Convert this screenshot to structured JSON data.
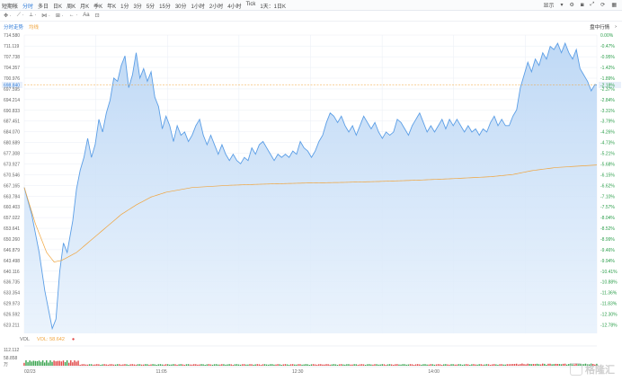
{
  "toolbar": {
    "tabs": [
      "短期帐",
      "分时",
      "多日",
      "日K",
      "周K",
      "月K",
      "季K",
      "年K",
      "1分",
      "3分",
      "5分",
      "15分",
      "30分",
      "1小时",
      "2小时",
      "4小时",
      "Tick",
      "1天：1日K"
    ],
    "active_tab": 1,
    "right_label": "显示"
  },
  "drawbar": {
    "tools": [
      "✥ ·",
      "⟋ ·",
      "⟂ ·",
      "⋈ ·",
      "⊞ ·",
      "← ·",
      "Aa",
      "⊡"
    ]
  },
  "subhead": {
    "left_labels": [
      "分时走势",
      "均线"
    ],
    "right_label": "盘中行情"
  },
  "colors": {
    "price_line": "#5b9ee6",
    "area_top": "#bcd7f5",
    "avg_line": "#f0a43c",
    "vol_up": "#e04646",
    "vol_down": "#38a34e",
    "grid": "#e9eef5",
    "current_price": "#f0a43c",
    "right_axis": "#2b9e4a",
    "tab_active": "#2f7bd8",
    "tab_text": "#444444",
    "avg_label": "#f0a43c"
  },
  "vol": {
    "name": "VOL",
    "value_label": "VOL: 58.642"
  },
  "chart_data": {
    "type": "line",
    "x_tick_labels": [
      "02/23",
      "11:05",
      "12:30",
      "14:00"
    ],
    "x_tick_index": [
      0,
      73,
      146,
      219
    ],
    "y_left_labels": [
      "714.580",
      "711.119",
      "707.738",
      "704.357",
      "700.976",
      "697.595",
      "694.214",
      "690.833",
      "687.451",
      "684.070",
      "680.689",
      "677.308",
      "673.927",
      "670.546",
      "667.165",
      "663.784",
      "660.403",
      "657.022",
      "653.641",
      "650.260",
      "646.879",
      "643.498",
      "640.116",
      "636.735",
      "633.354",
      "629.973",
      "626.592",
      "623.211"
    ],
    "y_right_labels": [
      "0.00%",
      "-0.47%",
      "-0.95%",
      "-1.42%",
      "-1.89%",
      "-2.37%",
      "-2.84%",
      "-3.31%",
      "-3.79%",
      "-4.26%",
      "-4.73%",
      "-5.21%",
      "-5.68%",
      "-6.15%",
      "-6.62%",
      "-7.10%",
      "-7.57%",
      "-8.04%",
      "-8.52%",
      "-8.99%",
      "-9.46%",
      "-9.94%",
      "-10.41%",
      "-10.88%",
      "-11.36%",
      "-11.83%",
      "-12.30%",
      "-12.78%"
    ],
    "ylim": [
      620.5,
      714.58
    ],
    "current_price": "698.840",
    "current_pct": "-2.18%",
    "series_price_anchors": [
      [
        0,
        666.5
      ],
      [
        4,
        658
      ],
      [
        8,
        646
      ],
      [
        11,
        634
      ],
      [
        13,
        628
      ],
      [
        15,
        622
      ],
      [
        17,
        625
      ],
      [
        19,
        640
      ],
      [
        21,
        649
      ],
      [
        23,
        646
      ],
      [
        26,
        656
      ],
      [
        28,
        666
      ],
      [
        30,
        672
      ],
      [
        32,
        676
      ],
      [
        34,
        682
      ],
      [
        36,
        676
      ],
      [
        38,
        680
      ],
      [
        40,
        688
      ],
      [
        42,
        684
      ],
      [
        44,
        690
      ],
      [
        46,
        694
      ],
      [
        48,
        701
      ],
      [
        50,
        700
      ],
      [
        52,
        705
      ],
      [
        54,
        708
      ],
      [
        56,
        698
      ],
      [
        58,
        702
      ],
      [
        60,
        709
      ],
      [
        62,
        701
      ],
      [
        64,
        704
      ],
      [
        66,
        700
      ],
      [
        68,
        703
      ],
      [
        70,
        695
      ],
      [
        72,
        692
      ],
      [
        74,
        685
      ],
      [
        76,
        689
      ],
      [
        78,
        686
      ],
      [
        80,
        681
      ],
      [
        82,
        686
      ],
      [
        84,
        683
      ],
      [
        86,
        684
      ],
      [
        88,
        681
      ],
      [
        90,
        683
      ],
      [
        92,
        686
      ],
      [
        94,
        688
      ],
      [
        96,
        683
      ],
      [
        98,
        680
      ],
      [
        100,
        683
      ],
      [
        102,
        680
      ],
      [
        104,
        677
      ],
      [
        106,
        680
      ],
      [
        108,
        677
      ],
      [
        110,
        675
      ],
      [
        112,
        677
      ],
      [
        114,
        675
      ],
      [
        116,
        674
      ],
      [
        118,
        676
      ],
      [
        120,
        675
      ],
      [
        122,
        679
      ],
      [
        124,
        677
      ],
      [
        126,
        680
      ],
      [
        128,
        681
      ],
      [
        130,
        679
      ],
      [
        132,
        677
      ],
      [
        134,
        675
      ],
      [
        136,
        677
      ],
      [
        138,
        676
      ],
      [
        140,
        677
      ],
      [
        142,
        676
      ],
      [
        144,
        678
      ],
      [
        146,
        677
      ],
      [
        148,
        681
      ],
      [
        150,
        679
      ],
      [
        152,
        678
      ],
      [
        154,
        676
      ],
      [
        156,
        678
      ],
      [
        158,
        681
      ],
      [
        160,
        683
      ],
      [
        162,
        687
      ],
      [
        164,
        690
      ],
      [
        166,
        689
      ],
      [
        168,
        687
      ],
      [
        170,
        689
      ],
      [
        172,
        686
      ],
      [
        174,
        684
      ],
      [
        176,
        686
      ],
      [
        178,
        683
      ],
      [
        180,
        686
      ],
      [
        182,
        689
      ],
      [
        184,
        687
      ],
      [
        186,
        685
      ],
      [
        188,
        687
      ],
      [
        190,
        684
      ],
      [
        192,
        682
      ],
      [
        194,
        684
      ],
      [
        196,
        683
      ],
      [
        198,
        684
      ],
      [
        200,
        688
      ],
      [
        202,
        687
      ],
      [
        204,
        685
      ],
      [
        206,
        683
      ],
      [
        208,
        686
      ],
      [
        210,
        688
      ],
      [
        212,
        690
      ],
      [
        214,
        687
      ],
      [
        216,
        684
      ],
      [
        218,
        686
      ],
      [
        220,
        684
      ],
      [
        222,
        686
      ],
      [
        224,
        688
      ],
      [
        226,
        685
      ],
      [
        228,
        688
      ],
      [
        230,
        686
      ],
      [
        232,
        688
      ],
      [
        234,
        686
      ],
      [
        236,
        684
      ],
      [
        238,
        686
      ],
      [
        240,
        684
      ],
      [
        242,
        685
      ],
      [
        244,
        683
      ],
      [
        246,
        685
      ],
      [
        248,
        684
      ],
      [
        250,
        687
      ],
      [
        252,
        689
      ],
      [
        254,
        686
      ],
      [
        256,
        688
      ],
      [
        258,
        686
      ],
      [
        260,
        686
      ],
      [
        262,
        689
      ],
      [
        264,
        691
      ],
      [
        266,
        698
      ],
      [
        268,
        702
      ],
      [
        270,
        706
      ],
      [
        272,
        703
      ],
      [
        274,
        707
      ],
      [
        276,
        705
      ],
      [
        278,
        709
      ],
      [
        280,
        707
      ],
      [
        282,
        711
      ],
      [
        284,
        710
      ],
      [
        286,
        712
      ],
      [
        288,
        709
      ],
      [
        290,
        712
      ],
      [
        292,
        709
      ],
      [
        294,
        707
      ],
      [
        296,
        710
      ],
      [
        298,
        704
      ],
      [
        300,
        702
      ],
      [
        302,
        700
      ],
      [
        304,
        697
      ],
      [
        306,
        699
      ],
      [
        307,
        698.84
      ]
    ],
    "series_avg_anchors": [
      [
        0,
        666.5
      ],
      [
        6,
        655
      ],
      [
        12,
        646
      ],
      [
        16,
        643
      ],
      [
        20,
        643.5
      ],
      [
        28,
        646
      ],
      [
        36,
        650
      ],
      [
        44,
        654
      ],
      [
        52,
        658
      ],
      [
        60,
        661
      ],
      [
        68,
        663.5
      ],
      [
        76,
        665
      ],
      [
        90,
        666.5
      ],
      [
        110,
        667.2
      ],
      [
        130,
        667.6
      ],
      [
        150,
        667.9
      ],
      [
        170,
        668.1
      ],
      [
        190,
        668.4
      ],
      [
        210,
        668.8
      ],
      [
        230,
        669.3
      ],
      [
        250,
        669.9
      ],
      [
        262,
        670.6
      ],
      [
        272,
        671.8
      ],
      [
        285,
        672.8
      ],
      [
        307,
        673.6
      ]
    ],
    "total_points": 308,
    "volume_ylim": [
      0,
      112.112
    ],
    "volume_axis_labels": [
      "112.112",
      "58.858",
      "万"
    ]
  }
}
